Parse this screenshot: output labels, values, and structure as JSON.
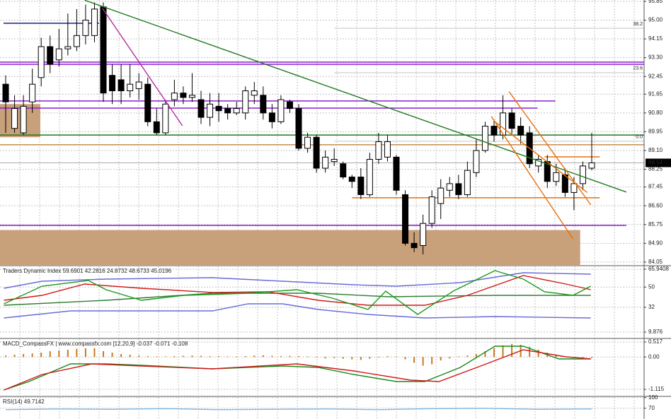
{
  "chart_data": [
    {
      "type": "candlestick",
      "xlim": [
        -0.64,
        71.9
      ],
      "ylim": [
        83.92,
        95.91
      ],
      "grid": true,
      "yticks": [
        95.85,
        {
          "value": 95,
          "label": "95.00"
        },
        94.15,
        {
          "value": 93.3,
          "label": "93.30"
        },
        92.45,
        91.65,
        {
          "value": 90.8,
          "label": "90.80"
        },
        89.95,
        {
          "value": 89.1,
          "label": "89.10"
        },
        88.25,
        87.45,
        {
          "value": 86.6,
          "label": "86.60"
        },
        85.75,
        {
          "value": 84.9,
          "label": "84.90"
        },
        84.05
      ],
      "up_color": "#ffffff",
      "down_color": "#000000",
      "open": [
        92.1,
        90.1,
        89.9,
        91.3,
        92.4,
        93.8,
        93.2,
        93.7,
        93.8,
        94.3,
        94.3,
        95.6,
        92.5,
        92.3,
        91.8,
        91.9,
        92.1,
        90.4,
        89.9,
        91.4,
        91.7,
        91.5,
        91.4,
        90.6,
        91.1,
        91.0,
        90.8,
        90.8,
        91.6,
        91.6,
        90.8,
        90.4,
        91.3,
        91.0,
        89.2,
        89.7,
        88.3,
        88.6,
        88.5,
        87.9,
        87.9,
        87.1,
        88.7,
        88.8,
        88.8,
        87.1,
        84.9,
        84.8,
        85.8,
        86.7,
        87.3,
        87.6,
        87.1,
        88.1,
        89.1,
        90.2,
        89.8,
        90.8,
        90.2,
        89.9,
        88.4,
        88.6,
        87.7,
        88.0,
        87.2,
        87.6,
        88.3
      ],
      "high": [
        92.5,
        91.6,
        91.6,
        92.8,
        94.2,
        94.3,
        94.6,
        95.3,
        95.5,
        95.7,
        95.8,
        95.8,
        93.0,
        93.0,
        93.0,
        92.6,
        92.4,
        91.0,
        91.4,
        92.3,
        92.0,
        92.6,
        91.8,
        91.7,
        91.7,
        91.2,
        91.3,
        92.0,
        92.2,
        92.0,
        91.2,
        91.6,
        91.4,
        91.2,
        89.9,
        89.8,
        89.1,
        89.2,
        88.6,
        88.0,
        88.3,
        89.0,
        89.9,
        89.8,
        88.9,
        87.3,
        85.4,
        86.2,
        87.3,
        87.8,
        87.9,
        88.0,
        88.6,
        89.6,
        90.4,
        90.5,
        91.6,
        91.0,
        90.6,
        90.2,
        88.9,
        88.9,
        88.5,
        88.3,
        87.9,
        88.6,
        89.9
      ],
      "low": [
        89.9,
        89.9,
        89.8,
        90.8,
        92.0,
        92.6,
        92.9,
        93.4,
        93.6,
        93.9,
        94.0,
        91.3,
        91.2,
        91.2,
        91.5,
        91.4,
        90.2,
        89.8,
        89.8,
        91.1,
        91.2,
        91.3,
        90.3,
        90.2,
        90.4,
        90.5,
        90.7,
        90.5,
        91.2,
        90.5,
        90.1,
        90.3,
        90.8,
        89.1,
        89.0,
        88.1,
        88.1,
        88.4,
        87.8,
        87.4,
        86.9,
        87.0,
        88.5,
        88.6,
        87.1,
        84.8,
        84.5,
        84.4,
        85.6,
        86.0,
        87.0,
        86.9,
        87.0,
        87.9,
        89.0,
        89.5,
        89.6,
        89.8,
        89.4,
        88.3,
        88.1,
        87.4,
        87.5,
        87.0,
        86.4,
        87.3,
        88.2
      ],
      "close": [
        91.3,
        91.0,
        91.1,
        92.1,
        93.8,
        93.0,
        93.7,
        93.8,
        94.3,
        95.0,
        95.5,
        91.7,
        91.8,
        91.8,
        92.1,
        92.2,
        90.4,
        89.9,
        91.2,
        91.7,
        91.5,
        91.6,
        90.6,
        91.2,
        90.9,
        90.8,
        91.0,
        91.8,
        91.8,
        90.8,
        90.4,
        91.4,
        91.0,
        89.2,
        89.7,
        88.3,
        88.8,
        88.7,
        87.9,
        87.7,
        87.1,
        88.7,
        89.5,
        89.5,
        87.3,
        84.9,
        84.7,
        85.8,
        87.0,
        87.4,
        87.6,
        87.1,
        88.2,
        89.1,
        90.2,
        89.8,
        90.8,
        90.1,
        89.8,
        88.5,
        88.7,
        87.7,
        88.1,
        87.2,
        87.6,
        88.4,
        88.54
      ],
      "last_price": 88.54,
      "zones": [
        {
          "from": 89.7,
          "to": 91.2,
          "start": -0.64,
          "end": 3.9,
          "color": "#c8a07a"
        },
        {
          "from": 83.92,
          "to": 85.5,
          "start": -0.64,
          "end": 64.7,
          "color": "#c8a07a"
        }
      ],
      "levels": [
        {
          "value": 94.86,
          "start": -0.24,
          "end": 10.5,
          "color": "#1c1c8c"
        },
        {
          "value": 93.1,
          "start": -0.64,
          "end": 71.9,
          "color": "#8b1fd0"
        },
        {
          "value": 93.0,
          "start": -0.64,
          "end": 71.9,
          "color": "#8b1fd0"
        },
        {
          "value": 91.34,
          "start": -0.64,
          "end": 61.9,
          "color": "#8b1fd0"
        },
        {
          "value": 91.02,
          "start": -0.64,
          "end": 59.9,
          "color": "#8b1fd0"
        },
        {
          "value": 89.8,
          "start": -0.64,
          "end": 71.9,
          "color": "#1f7a1f"
        },
        {
          "value": 89.36,
          "start": -0.64,
          "end": 71.9,
          "color": "#c88a4a"
        },
        {
          "value": 85.71,
          "start": -0.64,
          "end": 69.9,
          "color": "#8b1fd0"
        },
        {
          "value": 86.96,
          "start": 39.0,
          "end": 66.9,
          "color": "#e8700a"
        },
        {
          "value": 88.81,
          "start": 60.7,
          "end": 66.9,
          "color": "#e8700a"
        },
        {
          "value": 94.63,
          "start": 37.0,
          "end": 71.9,
          "color": "#d8d8d8"
        },
        {
          "value": 92.62,
          "start": 37.0,
          "end": 71.9,
          "color": "#d8d8d8"
        },
        {
          "value": 89.52,
          "start": 37.0,
          "end": 71.9,
          "color": "#d8d8d8"
        }
      ],
      "annotations": [
        {
          "text": "38.2",
          "y": 94.63
        },
        {
          "text": "23.6",
          "y": 92.62
        },
        {
          "text": "0.0",
          "y": 89.52
        }
      ],
      "trendlines": [
        {
          "color": "#1f7a1f",
          "x": [
            8.9,
            69.9
          ],
          "values": [
            95.9,
            87.22
          ]
        },
        {
          "color": "#b0309a",
          "x": [
            10.9,
            19.9
          ],
          "values": [
            95.53,
            90.22
          ]
        },
        {
          "color": "#e8700a",
          "x": [
            56.7,
            65.9
          ],
          "values": [
            91.76,
            86.64
          ]
        },
        {
          "color": "#e8700a",
          "x": [
            55.1,
            65.5
          ],
          "values": [
            90.4,
            87.2
          ]
        },
        {
          "color": "#e8700a",
          "x": [
            54.7,
            63.9
          ],
          "values": [
            90.64,
            85.1
          ]
        }
      ]
    },
    {
      "type": "line",
      "title": "Traders Dynamic Index 59.6901 42.2816 24.8732 48.6733 45.0196",
      "xlim": [
        -0.64,
        71.9
      ],
      "ylim": [
        4.83,
        68.46
      ],
      "grid": true,
      "yticks": [
        65.9408,
        50,
        32,
        9.876
      ],
      "series": [
        {
          "color": "#6a6ad8",
          "x": [
            -0.2,
            4.1,
            11.3,
            23.3,
            31.2,
            39.2,
            44.0,
            51.2,
            58.3,
            65.9
          ],
          "values": [
            48.9,
            55.2,
            57.1,
            58.4,
            55.2,
            52.1,
            50.8,
            54.0,
            62.8,
            61.5
          ]
        },
        {
          "color": "#6a6ad8",
          "x": [
            -0.2,
            7.3,
            15.3,
            23.3,
            27.3,
            31.2,
            35.2,
            40.8,
            47.2,
            55.1,
            65.9
          ],
          "values": [
            22.5,
            28.8,
            28.8,
            28.8,
            35.1,
            35.1,
            30.0,
            25.6,
            22.5,
            23.7,
            22.5
          ]
        },
        {
          "color": "#2e7d32",
          "x": [
            -0.2,
            11.3,
            23.3,
            35.2,
            43.2,
            55.1,
            65.9
          ],
          "values": [
            33.8,
            38.2,
            44.5,
            44.5,
            41.4,
            42.6,
            42.6
          ]
        },
        {
          "color": "#d01818",
          "x": [
            -0.2,
            4.1,
            8.9,
            15.3,
            23.3,
            29.6,
            35.2,
            40.8,
            47.2,
            52.0,
            58.3,
            63.1,
            65.9
          ],
          "values": [
            38.2,
            42.6,
            52.7,
            48.9,
            45.2,
            45.8,
            38.2,
            33.8,
            33.8,
            42.6,
            60.3,
            52.7,
            47.7
          ]
        },
        {
          "color": "#1a9a1a",
          "x": [
            -0.2,
            4.1,
            9.3,
            11.3,
            15.3,
            20.1,
            27.3,
            32.8,
            36.8,
            40.8,
            42.8,
            46.4,
            50.4,
            55.1,
            58.3,
            60.7,
            63.9,
            65.9
          ],
          "values": [
            35.1,
            50.8,
            55.9,
            47.7,
            38.2,
            42.6,
            44.5,
            47.7,
            40.1,
            30.0,
            46.4,
            25.6,
            46.4,
            64.7,
            57.1,
            45.8,
            42.6,
            50.8
          ]
        }
      ]
    },
    {
      "type": "combo",
      "title": "MACD_CompassFX | www.compassfx.com [12,20,9] -0.037 -0.071 -0.108",
      "xlim": [
        -0.64,
        71.9
      ],
      "ylim": [
        -1.334,
        0.614
      ],
      "grid": true,
      "yticks": [
        0.517,
        {
          "value": 0,
          "label": "0.00"
        },
        -1.115
      ],
      "histogram": {
        "color": "#c87a20",
        "values": [
          0.05,
          0.08,
          0.1,
          0.12,
          0.15,
          0.2,
          0.22,
          0.25,
          0.28,
          0.3,
          0.3,
          0.2,
          0.15,
          0.1,
          0.08,
          0.05,
          0.03,
          0.02,
          0.02,
          0.03,
          0.04,
          0.05,
          0.04,
          0.03,
          0.03,
          0.02,
          0.02,
          0.03,
          0.05,
          0.06,
          0.04,
          0.03,
          0.04,
          0.03,
          0.02,
          -0.02,
          -0.05,
          -0.04,
          -0.06,
          -0.08,
          -0.1,
          -0.06,
          -0.02,
          0.03,
          0.02,
          -0.08,
          -0.2,
          -0.3,
          -0.25,
          -0.12,
          -0.05,
          0.02,
          0.05,
          0.1,
          0.2,
          0.3,
          0.4,
          0.45,
          0.42,
          0.35,
          0.25,
          0.15,
          0.08,
          0.02,
          -0.03,
          -0.05,
          -0.04
        ]
      },
      "series": [
        {
          "color": "#1a8a1a",
          "x": [
            -0.2,
            2.6,
            7.3,
            11.3,
            15.3,
            23.3,
            31.2,
            35.2,
            39.2,
            44.0,
            47.2,
            51.2,
            55.1,
            58.3,
            62.3,
            65.9
          ],
          "values": [
            -1.139,
            -0.85,
            -0.238,
            -0.238,
            -0.287,
            -0.409,
            -0.311,
            -0.36,
            -0.604,
            -0.847,
            -0.847,
            -0.36,
            0.371,
            0.371,
            -0.068,
            -0.068
          ]
        },
        {
          "color": "#d01818",
          "x": [
            -0.2,
            4.1,
            9.7,
            15.3,
            23.3,
            32.8,
            39.2,
            45.6,
            48.8,
            53.5,
            58.3,
            63.1,
            65.9
          ],
          "values": [
            -1.139,
            -0.604,
            -0.238,
            -0.311,
            -0.409,
            -0.238,
            -0.482,
            -0.798,
            -0.847,
            -0.311,
            0.249,
            0.005,
            -0.068
          ]
        }
      ]
    },
    {
      "type": "line",
      "title": "RSI(14) 49.7142",
      "xlim": [
        -0.64,
        71.9
      ],
      "ylim": [
        39.5,
        101.5
      ],
      "grid": true,
      "yticks": [
        100,
        70
      ],
      "series": [
        {
          "color": "#7fb8e6",
          "x": [
            0,
            6,
            12,
            18,
            24,
            30,
            36,
            42,
            48,
            54,
            60,
            66
          ],
          "values": [
            66,
            68,
            67,
            69,
            66,
            67,
            68,
            66,
            69,
            70,
            67,
            68
          ]
        }
      ]
    }
  ]
}
